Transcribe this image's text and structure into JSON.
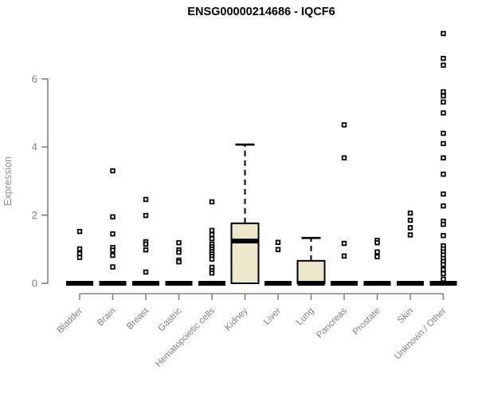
{
  "header": {
    "title": "ENSG00000214686 - IQCF6"
  },
  "chart_data": {
    "type": "boxplot",
    "title": "ENSG00000214686 - IQCF6",
    "xlabel": "",
    "ylabel": "Expression",
    "ylim": [
      0,
      7.6
    ],
    "yticks": [
      0,
      2,
      4,
      6
    ],
    "grid": false,
    "legend": "none",
    "colors": {
      "box_fill": "#EDE8CD",
      "box_border": "#000000",
      "median": "#000000",
      "outlier": "#000000",
      "axis": "#808080",
      "tick_label": "#808080",
      "axis_title": "#8E8E8E",
      "title": "#000000",
      "background": "#FFFFFF"
    },
    "categories": [
      "Bladder",
      "Brain",
      "Breast",
      "Gastric",
      "Hematopoietic cells",
      "Kidney",
      "Liver",
      "Lung",
      "Pancreas",
      "Prostate",
      "Skin",
      "Unknown / Other"
    ],
    "series": [
      {
        "name": "Bladder",
        "q1": 0,
        "median": 0,
        "q3": 0,
        "whisker_low": 0,
        "whisker_high": 0,
        "outliers": [
          1.52,
          1.01,
          0.87,
          0.76
        ]
      },
      {
        "name": "Brain",
        "q1": 0,
        "median": 0,
        "q3": 0,
        "whisker_low": 0,
        "whisker_high": 0,
        "outliers": [
          3.3,
          1.95,
          1.45,
          1.05,
          0.97,
          0.82,
          0.48
        ]
      },
      {
        "name": "Breast",
        "q1": 0,
        "median": 0,
        "q3": 0,
        "whisker_low": 0,
        "whisker_high": 0,
        "outliers": [
          2.46,
          1.99,
          1.22,
          1.15,
          0.98,
          0.33
        ]
      },
      {
        "name": "Gastric",
        "q1": 0,
        "median": 0,
        "q3": 0,
        "whisker_low": 0,
        "whisker_high": 0,
        "outliers": [
          1.19,
          0.98,
          0.91,
          0.68,
          0.63
        ]
      },
      {
        "name": "Hematopoietic cells",
        "q1": 0,
        "median": 0,
        "q3": 0,
        "whisker_low": 0,
        "whisker_high": 0,
        "outliers": [
          2.39,
          1.55,
          1.43,
          1.31,
          1.15,
          1.07,
          1.0,
          0.93,
          0.86,
          0.79,
          0.71,
          0.47,
          0.37,
          0.3
        ]
      },
      {
        "name": "Kidney",
        "q1": 0,
        "median": 1.24,
        "q3": 1.76,
        "whisker_low": 0,
        "whisker_high": 4.07,
        "outliers": []
      },
      {
        "name": "Liver",
        "q1": 0,
        "median": 0,
        "q3": 0,
        "whisker_low": 0,
        "whisker_high": 0,
        "outliers": [
          1.2,
          0.99
        ]
      },
      {
        "name": "Lung",
        "q1": 0,
        "median": 0,
        "q3": 0.66,
        "whisker_low": 0,
        "whisker_high": 1.33,
        "outliers": []
      },
      {
        "name": "Pancreas",
        "q1": 0,
        "median": 0,
        "q3": 0,
        "whisker_low": 0,
        "whisker_high": 0,
        "outliers": [
          4.65,
          3.68,
          1.17,
          0.8
        ]
      },
      {
        "name": "Prostate",
        "q1": 0,
        "median": 0,
        "q3": 0,
        "whisker_low": 0,
        "whisker_high": 0,
        "outliers": [
          1.26,
          1.19,
          0.92,
          0.78
        ]
      },
      {
        "name": "Skin",
        "q1": 0,
        "median": 0,
        "q3": 0,
        "whisker_low": 0,
        "whisker_high": 0,
        "outliers": [
          2.06,
          1.85,
          1.63,
          1.42
        ]
      },
      {
        "name": "Unknown / Other",
        "q1": 0,
        "median": 0,
        "q3": 0,
        "whisker_low": 0,
        "whisker_high": 0,
        "outliers": [
          7.33,
          6.6,
          6.4,
          5.62,
          5.5,
          5.32,
          5.0,
          4.4,
          4.1,
          3.68,
          3.2,
          2.62,
          2.27,
          1.82,
          1.73,
          1.4,
          1.1,
          1.01,
          0.92,
          0.83,
          0.73,
          0.64,
          0.55,
          0.4,
          0.28,
          0.12
        ]
      }
    ]
  }
}
